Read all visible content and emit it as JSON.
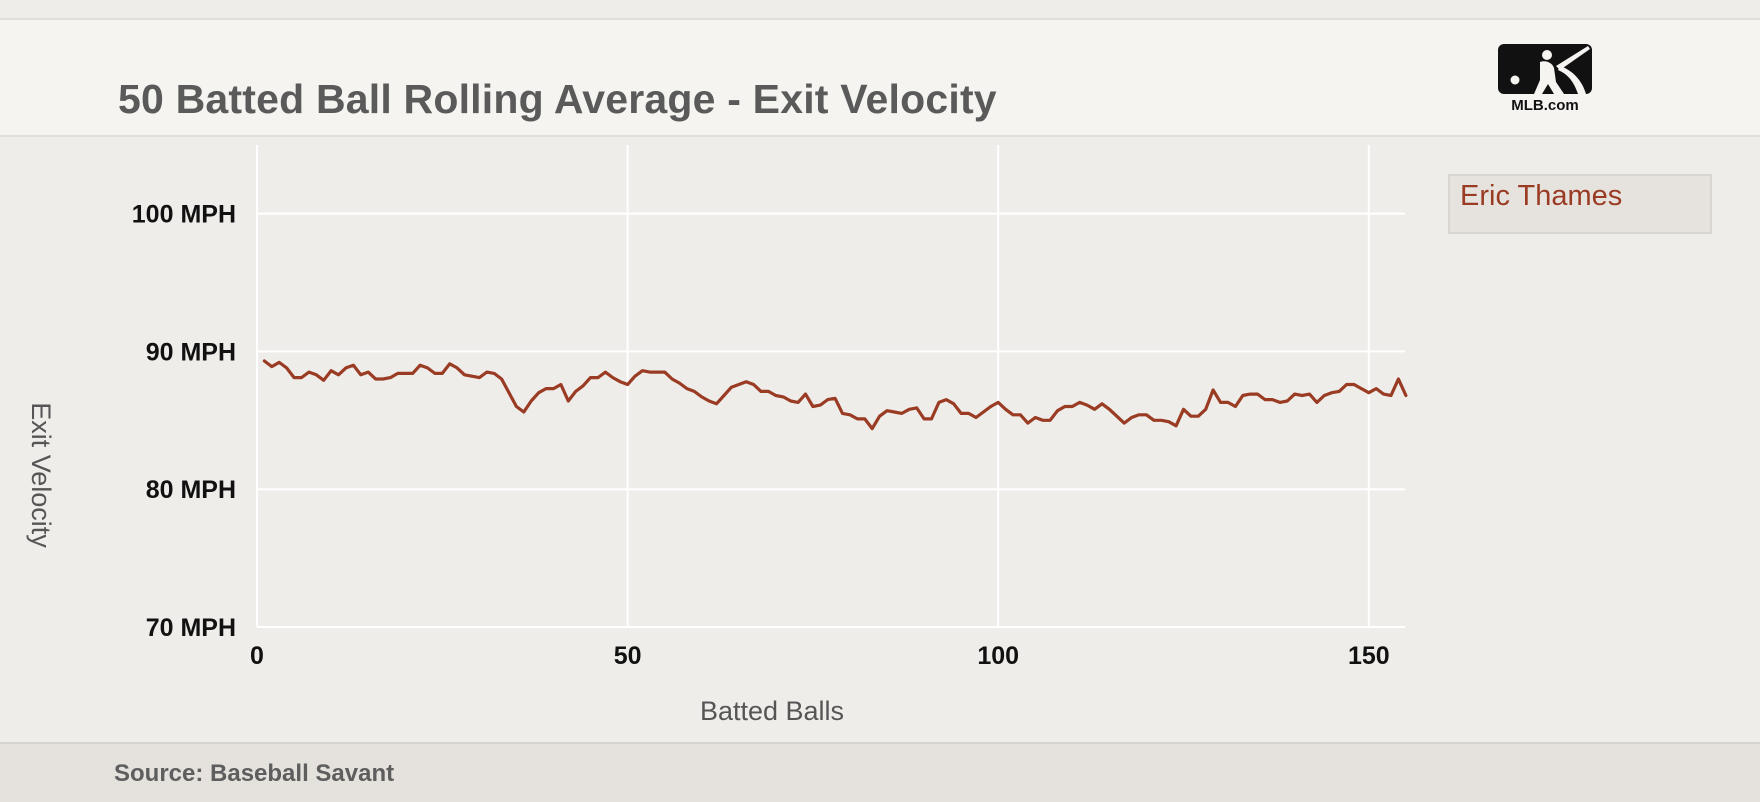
{
  "title": "50 Batted Ball Rolling Average - Exit Velocity",
  "logo": {
    "text": "MLB.com",
    "icon": "mlb-batter-logo-icon"
  },
  "footer": {
    "source": "Source: Baseball Savant"
  },
  "colors": {
    "line": "#9a3b24",
    "grid": "#ffffff",
    "background": "#efede9"
  },
  "chart_data": {
    "type": "line",
    "xlabel": "Batted Balls",
    "ylabel": "Exit Velocity",
    "xlim": [
      0,
      155
    ],
    "ylim": [
      70,
      105
    ],
    "x_ticks": [
      0,
      50,
      100,
      150
    ],
    "y_ticks": [
      100,
      90,
      80,
      70
    ],
    "y_tick_labels": [
      "100 MPH",
      "90 MPH",
      "80 MPH",
      "70 MPH"
    ],
    "grid": true,
    "legend_position": "top-right",
    "series": [
      {
        "name": "Eric Thames",
        "color": "#9a3b24",
        "x": [
          1,
          2,
          3,
          4,
          5,
          6,
          7,
          8,
          9,
          10,
          11,
          12,
          13,
          14,
          15,
          16,
          17,
          18,
          19,
          20,
          21,
          22,
          23,
          24,
          25,
          26,
          27,
          28,
          29,
          30,
          31,
          32,
          33,
          34,
          35,
          36,
          37,
          38,
          39,
          40,
          41,
          42,
          43,
          44,
          45,
          46,
          47,
          48,
          49,
          50,
          51,
          52,
          53,
          54,
          55,
          56,
          57,
          58,
          59,
          60,
          61,
          62,
          63,
          64,
          65,
          66,
          67,
          68,
          69,
          70,
          71,
          72,
          73,
          74,
          75,
          76,
          77,
          78,
          79,
          80,
          81,
          82,
          83,
          84,
          85,
          86,
          87,
          88,
          89,
          90,
          91,
          92,
          93,
          94,
          95,
          96,
          97,
          98,
          99,
          100,
          101,
          102,
          103,
          104,
          105,
          106,
          107,
          108,
          109,
          110,
          111,
          112,
          113,
          114,
          115,
          116,
          117,
          118,
          119,
          120,
          121,
          122,
          123,
          124,
          125,
          126,
          127,
          128,
          129,
          130,
          131,
          132,
          133,
          134,
          135,
          136,
          137,
          138,
          139,
          140,
          141,
          142,
          143,
          144,
          145,
          146,
          147,
          148,
          149,
          150,
          151,
          152,
          153,
          154,
          155
        ],
        "values": [
          89.3,
          88.9,
          89.2,
          88.8,
          88.1,
          88.1,
          88.5,
          88.3,
          87.9,
          88.6,
          88.3,
          88.8,
          89.0,
          88.3,
          88.5,
          88.0,
          88.0,
          88.1,
          88.4,
          88.4,
          88.4,
          89.0,
          88.8,
          88.4,
          88.4,
          89.1,
          88.8,
          88.3,
          88.2,
          88.1,
          88.5,
          88.4,
          88.0,
          87.0,
          86.0,
          85.6,
          86.4,
          87.0,
          87.3,
          87.3,
          87.6,
          86.4,
          87.1,
          87.5,
          88.1,
          88.1,
          88.5,
          88.1,
          87.8,
          87.6,
          88.2,
          88.6,
          88.5,
          88.5,
          88.5,
          88.0,
          87.7,
          87.3,
          87.1,
          86.7,
          86.4,
          86.2,
          86.8,
          87.4,
          87.6,
          87.8,
          87.6,
          87.1,
          87.1,
          86.8,
          86.7,
          86.4,
          86.3,
          86.9,
          86.0,
          86.1,
          86.5,
          86.6,
          85.5,
          85.4,
          85.1,
          85.1,
          84.4,
          85.3,
          85.7,
          85.6,
          85.5,
          85.8,
          85.9,
          85.1,
          85.1,
          86.3,
          86.5,
          86.2,
          85.5,
          85.5,
          85.2,
          85.6,
          86.0,
          86.3,
          85.8,
          85.4,
          85.4,
          84.8,
          85.2,
          85.0,
          85.0,
          85.7,
          86.0,
          86.0,
          86.3,
          86.1,
          85.8,
          86.2,
          85.8,
          85.3,
          84.8,
          85.2,
          85.4,
          85.4,
          85.0,
          85.0,
          84.9,
          84.6,
          85.8,
          85.3,
          85.3,
          85.8,
          87.2,
          86.3,
          86.3,
          86.0,
          86.8,
          86.9,
          86.9,
          86.5,
          86.5,
          86.3,
          86.4,
          86.9,
          86.8,
          86.9,
          86.3,
          86.8,
          87.0,
          87.1,
          87.6,
          87.6,
          87.3,
          87.0,
          87.3,
          86.9,
          86.8,
          88.0,
          86.8
        ]
      }
    ]
  }
}
